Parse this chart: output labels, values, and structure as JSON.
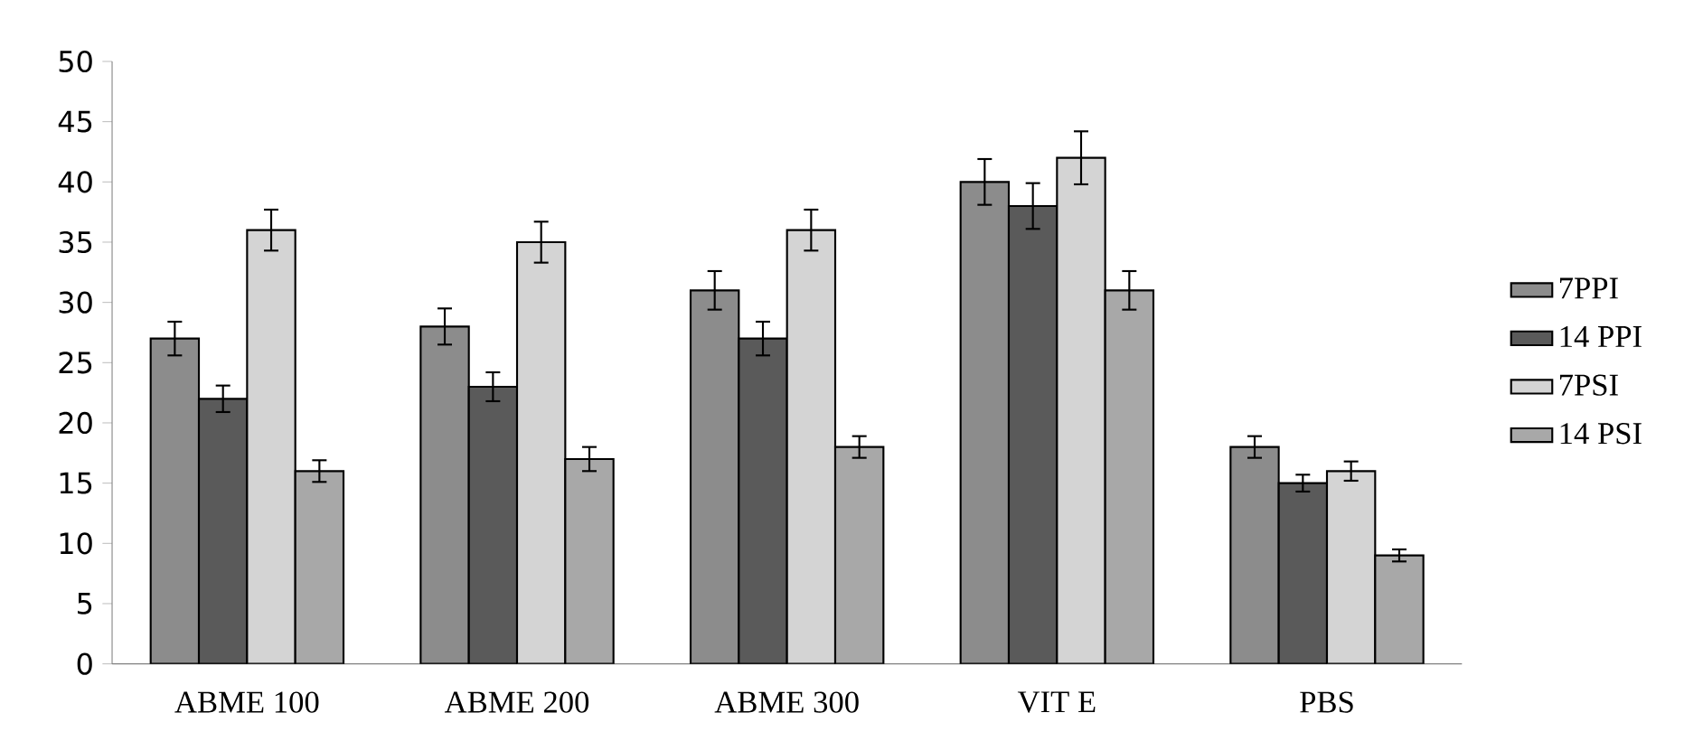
{
  "chart_data": {
    "type": "bar",
    "categories": [
      "ABME 100",
      "ABME 200",
      "ABME 300",
      "VIT E",
      "PBS"
    ],
    "series": [
      {
        "name": "7PPI",
        "color": "#8c8c8c",
        "values": [
          27,
          28,
          31,
          40,
          18
        ],
        "errors": [
          1.4,
          1.5,
          1.6,
          1.9,
          0.9
        ]
      },
      {
        "name": "14 PPI",
        "color": "#5a5a5a",
        "values": [
          22,
          23,
          27,
          38,
          15
        ],
        "errors": [
          1.1,
          1.2,
          1.4,
          1.9,
          0.7
        ]
      },
      {
        "name": "7PSI",
        "color": "#d4d4d4",
        "values": [
          36,
          35,
          36,
          42,
          16
        ],
        "errors": [
          1.7,
          1.7,
          1.7,
          2.2,
          0.8
        ]
      },
      {
        "name": "14 PSI",
        "color": "#a8a8a8",
        "values": [
          16,
          17,
          18,
          31,
          9
        ],
        "errors": [
          0.9,
          1.0,
          0.9,
          1.6,
          0.5
        ]
      }
    ],
    "ylim": [
      0,
      50
    ],
    "yticks": [
      0,
      5,
      10,
      15,
      20,
      25,
      30,
      35,
      40,
      45,
      50
    ],
    "grid": false,
    "legend": "right"
  }
}
